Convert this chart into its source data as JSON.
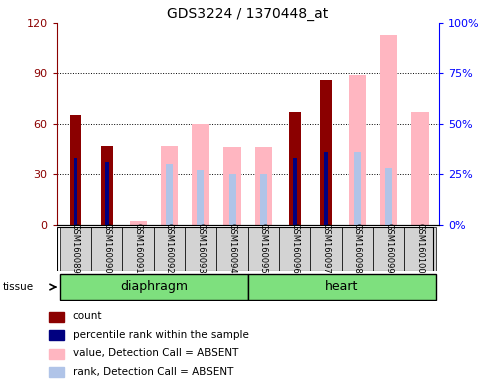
{
  "title": "GDS3224 / 1370448_at",
  "samples": [
    "GSM160089",
    "GSM160090",
    "GSM160091",
    "GSM160092",
    "GSM160093",
    "GSM160094",
    "GSM160095",
    "GSM160096",
    "GSM160097",
    "GSM160098",
    "GSM160099",
    "GSM160100"
  ],
  "tissue_groups": [
    {
      "label": "diaphragm",
      "start": 0,
      "end": 6
    },
    {
      "label": "heart",
      "start": 6,
      "end": 12
    }
  ],
  "count_values": [
    65,
    47,
    0,
    0,
    0,
    0,
    0,
    67,
    86,
    0,
    0,
    0
  ],
  "rank_values": [
    33,
    31,
    0,
    0,
    0,
    0,
    0,
    33,
    36,
    0,
    0,
    0
  ],
  "absent_value_values": [
    0,
    0,
    2,
    47,
    60,
    46,
    46,
    0,
    0,
    89,
    113,
    0
  ],
  "absent_rank_values": [
    0,
    0,
    0,
    30,
    27,
    25,
    25,
    0,
    0,
    36,
    0,
    0
  ],
  "absent_count_values": [
    0,
    0,
    0,
    0,
    0,
    0,
    0,
    0,
    0,
    0,
    0,
    67
  ],
  "absent_count_rank": [
    0,
    0,
    0,
    0,
    0,
    0,
    0,
    0,
    0,
    0,
    28,
    0
  ],
  "ylim_left": [
    0,
    120
  ],
  "ylim_right": [
    0,
    100
  ],
  "yticks_left": [
    0,
    30,
    60,
    90,
    120
  ],
  "ytick_labels_left": [
    "0",
    "30",
    "60",
    "90",
    "120"
  ],
  "yticks_right": [
    0,
    25,
    50,
    75,
    100
  ],
  "ytick_labels_right": [
    "0%",
    "25%",
    "50%",
    "75%",
    "100%"
  ],
  "color_count": "#8B0000",
  "color_rank": "#000080",
  "color_absent_value": "#FFB6C1",
  "color_absent_rank": "#B0C4E8",
  "tissue_color": "#7EE07E",
  "bg_color": "#D3D3D3"
}
